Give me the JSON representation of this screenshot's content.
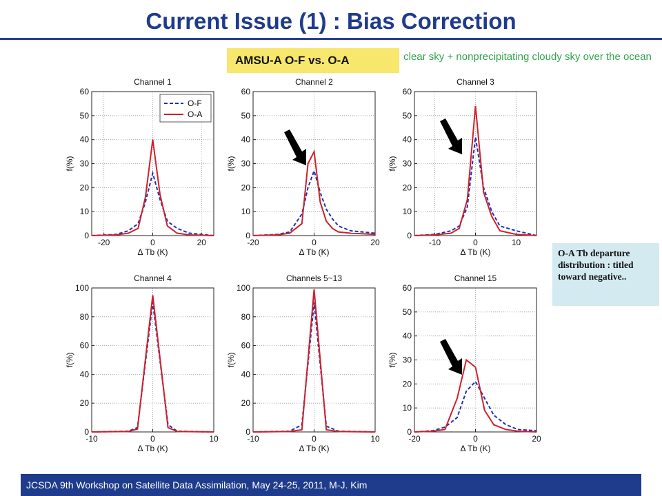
{
  "slide": {
    "title": "Current Issue (1) : Bias Correction",
    "subtitle_box": "AMSU-A O-F  vs. O-A",
    "condition_note": "clear sky + nonprecipitating cloudy sky over the ocean",
    "side_note": "O-A Tb departure distribution : titled toward negative..",
    "footer": "JCSDA 9th Workshop on Satellite Data Assimilation, May 24-25, 2011,    M-J.  Kim"
  },
  "colors": {
    "title": "#1f3b8c",
    "of_series": "#1f2fb0",
    "oa_series": "#d0202a",
    "footer_bg": "#1f3b8c",
    "highlight": "#f7e76d",
    "note_bg": "#d3eaf0",
    "note_text": "#2fa34a"
  },
  "chart_data": [
    {
      "type": "line",
      "title": "Channel 1",
      "xlabel": "Δ Tb (K)",
      "ylabel": "f(%)",
      "xlim": [
        -25,
        25
      ],
      "ylim": [
        0,
        60
      ],
      "xticks": [
        -20,
        0,
        20
      ],
      "yticks": [
        0,
        10,
        20,
        30,
        40,
        50,
        60
      ],
      "grid": true,
      "legend": "top-right",
      "series": [
        {
          "name": "O-F",
          "style": "dashed",
          "x": [
            -25,
            -15,
            -10,
            -6,
            -3,
            0,
            3,
            6,
            10,
            15,
            25
          ],
          "y": [
            0,
            0.5,
            2,
            5,
            14,
            26,
            15,
            6,
            3,
            1,
            0
          ]
        },
        {
          "name": "O-A",
          "style": "solid",
          "x": [
            -25,
            -15,
            -10,
            -6,
            -3,
            0,
            3,
            6,
            10,
            15,
            25
          ],
          "y": [
            0,
            0.3,
            1,
            3,
            16,
            40,
            17,
            4,
            1,
            0.3,
            0
          ]
        }
      ]
    },
    {
      "type": "line",
      "title": "Channel 2",
      "xlabel": "Δ Tb (K)",
      "ylabel": "f(%)",
      "xlim": [
        -20,
        20
      ],
      "ylim": [
        0,
        60
      ],
      "xticks": [
        -20,
        0,
        20
      ],
      "yticks": [
        0,
        10,
        20,
        30,
        40,
        50,
        60
      ],
      "grid": true,
      "series": [
        {
          "name": "O-F",
          "style": "dashed",
          "x": [
            -20,
            -12,
            -8,
            -4,
            -2,
            0,
            2,
            4,
            6,
            8,
            12,
            20
          ],
          "y": [
            0,
            0.5,
            1.5,
            9,
            20,
            27,
            18,
            11,
            7,
            4,
            2,
            1
          ]
        },
        {
          "name": "O-A",
          "style": "solid",
          "x": [
            -20,
            -12,
            -8,
            -4,
            -2,
            0,
            2,
            4,
            6,
            8,
            12,
            20
          ],
          "y": [
            0,
            0.3,
            1,
            5,
            30,
            35,
            14,
            6,
            3,
            1.5,
            1,
            0.5
          ]
        }
      ]
    },
    {
      "type": "line",
      "title": "Channel 3",
      "xlabel": "Δ Tb (K)",
      "ylabel": "f(%)",
      "xlim": [
        -15,
        15
      ],
      "ylim": [
        0,
        60
      ],
      "xticks": [
        -10,
        0,
        10
      ],
      "yticks": [
        0,
        10,
        20,
        30,
        40,
        50,
        60
      ],
      "grid": true,
      "series": [
        {
          "name": "O-F",
          "style": "dashed",
          "x": [
            -15,
            -10,
            -6,
            -4,
            -2,
            0,
            2,
            4,
            6,
            10,
            15
          ],
          "y": [
            0,
            0.5,
            2,
            4,
            12,
            41,
            20,
            10,
            4,
            2,
            0
          ]
        },
        {
          "name": "O-A",
          "style": "solid",
          "x": [
            -15,
            -10,
            -6,
            -4,
            -2,
            0,
            2,
            4,
            6,
            10,
            15
          ],
          "y": [
            0,
            0.3,
            1,
            3,
            15,
            54,
            18,
            8,
            2,
            0.5,
            0
          ]
        }
      ]
    },
    {
      "type": "line",
      "title": "Channel 4",
      "xlabel": "Δ Tb (K)",
      "ylabel": "f(%)",
      "xlim": [
        -10,
        10
      ],
      "ylim": [
        0,
        100
      ],
      "xticks": [
        -10,
        0,
        10
      ],
      "yticks": [
        0,
        20,
        40,
        60,
        80,
        100
      ],
      "grid": true,
      "series": [
        {
          "name": "O-F",
          "style": "dashed",
          "x": [
            -10,
            -4,
            -2.5,
            0,
            2.5,
            4,
            10
          ],
          "y": [
            0,
            0.5,
            3,
            90,
            5,
            0.5,
            0
          ]
        },
        {
          "name": "O-A",
          "style": "solid",
          "x": [
            -10,
            -4,
            -2.5,
            0,
            2.5,
            4,
            10
          ],
          "y": [
            0,
            0.3,
            2,
            95,
            3,
            0.3,
            0
          ]
        }
      ]
    },
    {
      "type": "line",
      "title": "Channels 5~13",
      "xlabel": "Δ Tb (K)",
      "ylabel": "f(%)",
      "xlim": [
        -10,
        10
      ],
      "ylim": [
        0,
        100
      ],
      "xticks": [
        -10,
        0,
        10
      ],
      "yticks": [
        0,
        20,
        40,
        60,
        80,
        100
      ],
      "grid": true,
      "series": [
        {
          "name": "O-F",
          "style": "dashed",
          "x": [
            -10,
            -4,
            -2,
            0,
            2,
            4,
            10
          ],
          "y": [
            0,
            0.5,
            5,
            90,
            4,
            0.5,
            0
          ]
        },
        {
          "name": "O-A",
          "style": "solid",
          "x": [
            -10,
            -4,
            -2,
            0,
            2,
            4,
            10
          ],
          "y": [
            0,
            0.3,
            1.5,
            99,
            1.5,
            0.3,
            0
          ]
        }
      ]
    },
    {
      "type": "line",
      "title": "Channel 15",
      "xlabel": "Δ Tb (K)",
      "ylabel": "f(%)",
      "xlim": [
        -20,
        20
      ],
      "ylim": [
        0,
        60
      ],
      "xticks": [
        -20,
        0,
        20
      ],
      "yticks": [
        0,
        10,
        20,
        30,
        40,
        50,
        60
      ],
      "grid": true,
      "series": [
        {
          "name": "O-F",
          "style": "dashed",
          "x": [
            -20,
            -14,
            -10,
            -6,
            -3,
            0,
            3,
            6,
            10,
            14,
            20
          ],
          "y": [
            0,
            0.5,
            2,
            6,
            17,
            21,
            14,
            7,
            3,
            1,
            0.5
          ]
        },
        {
          "name": "O-A",
          "style": "solid",
          "x": [
            -20,
            -14,
            -10,
            -6,
            -3,
            0,
            3,
            6,
            10,
            14,
            20
          ],
          "y": [
            0,
            0.3,
            1,
            14,
            30,
            27,
            9,
            3,
            1,
            0.3,
            0
          ]
        }
      ]
    }
  ]
}
